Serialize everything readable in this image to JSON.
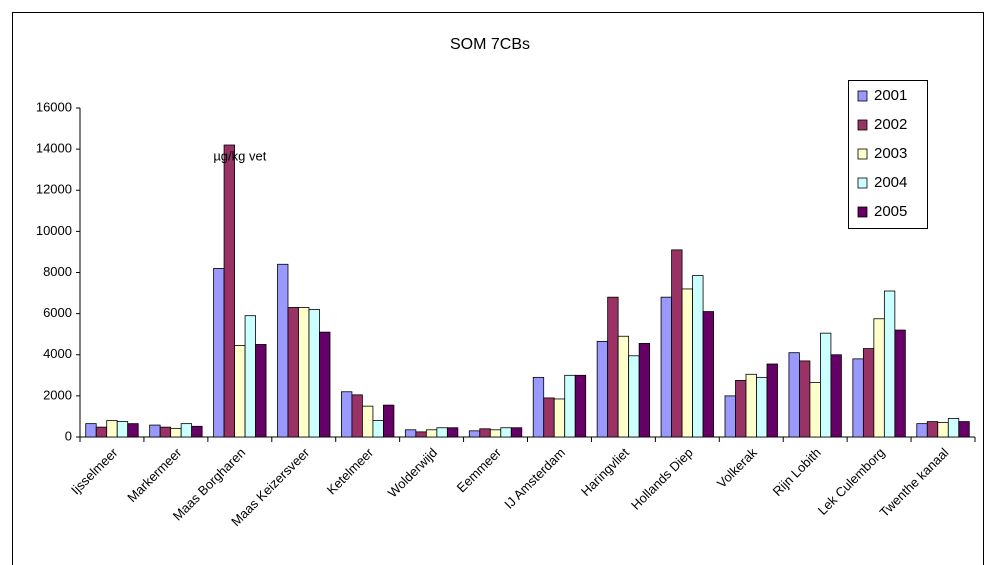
{
  "chart_data": {
    "type": "bar",
    "title": "SOM 7CBs",
    "annotation": "µg/kg vet",
    "categories": [
      "Ijsselmeer",
      "Markermeer",
      "Maas Borgharen",
      "Maas Keizersveer",
      "Ketelmeer",
      "Wolderwijd",
      "Eemmeer",
      "IJ Amsterdam",
      "Haringvliet",
      "Hollands Diep",
      "Volkerak",
      "Rijn Lobith",
      "Lek Culemborg",
      "Twenthe kanaal"
    ],
    "series": [
      {
        "name": "2001",
        "color": "#9999ff",
        "values": [
          650,
          580,
          8200,
          8400,
          2200,
          350,
          300,
          2900,
          4650,
          6800,
          2000,
          4100,
          3800,
          650
        ]
      },
      {
        "name": "2002",
        "color": "#993366",
        "values": [
          480,
          480,
          14200,
          6300,
          2050,
          250,
          400,
          1900,
          6800,
          9100,
          2750,
          3700,
          4300,
          750
        ]
      },
      {
        "name": "2003",
        "color": "#ffffcc",
        "values": [
          800,
          420,
          4450,
          6300,
          1500,
          350,
          350,
          1850,
          4900,
          7200,
          3050,
          2650,
          5750,
          700
        ]
      },
      {
        "name": "2004",
        "color": "#ccffff",
        "values": [
          750,
          650,
          5900,
          6200,
          800,
          450,
          450,
          3000,
          3950,
          7850,
          2900,
          5050,
          7100,
          900
        ]
      },
      {
        "name": "2005",
        "color": "#660066",
        "values": [
          650,
          520,
          4500,
          5100,
          1550,
          450,
          450,
          3000,
          4550,
          6100,
          3550,
          4000,
          5200,
          750
        ]
      }
    ],
    "ylim": [
      0,
      16000
    ],
    "yticks": [
      0,
      2000,
      4000,
      6000,
      8000,
      10000,
      12000,
      14000,
      16000
    ],
    "grid": false,
    "legend": "top-right"
  }
}
